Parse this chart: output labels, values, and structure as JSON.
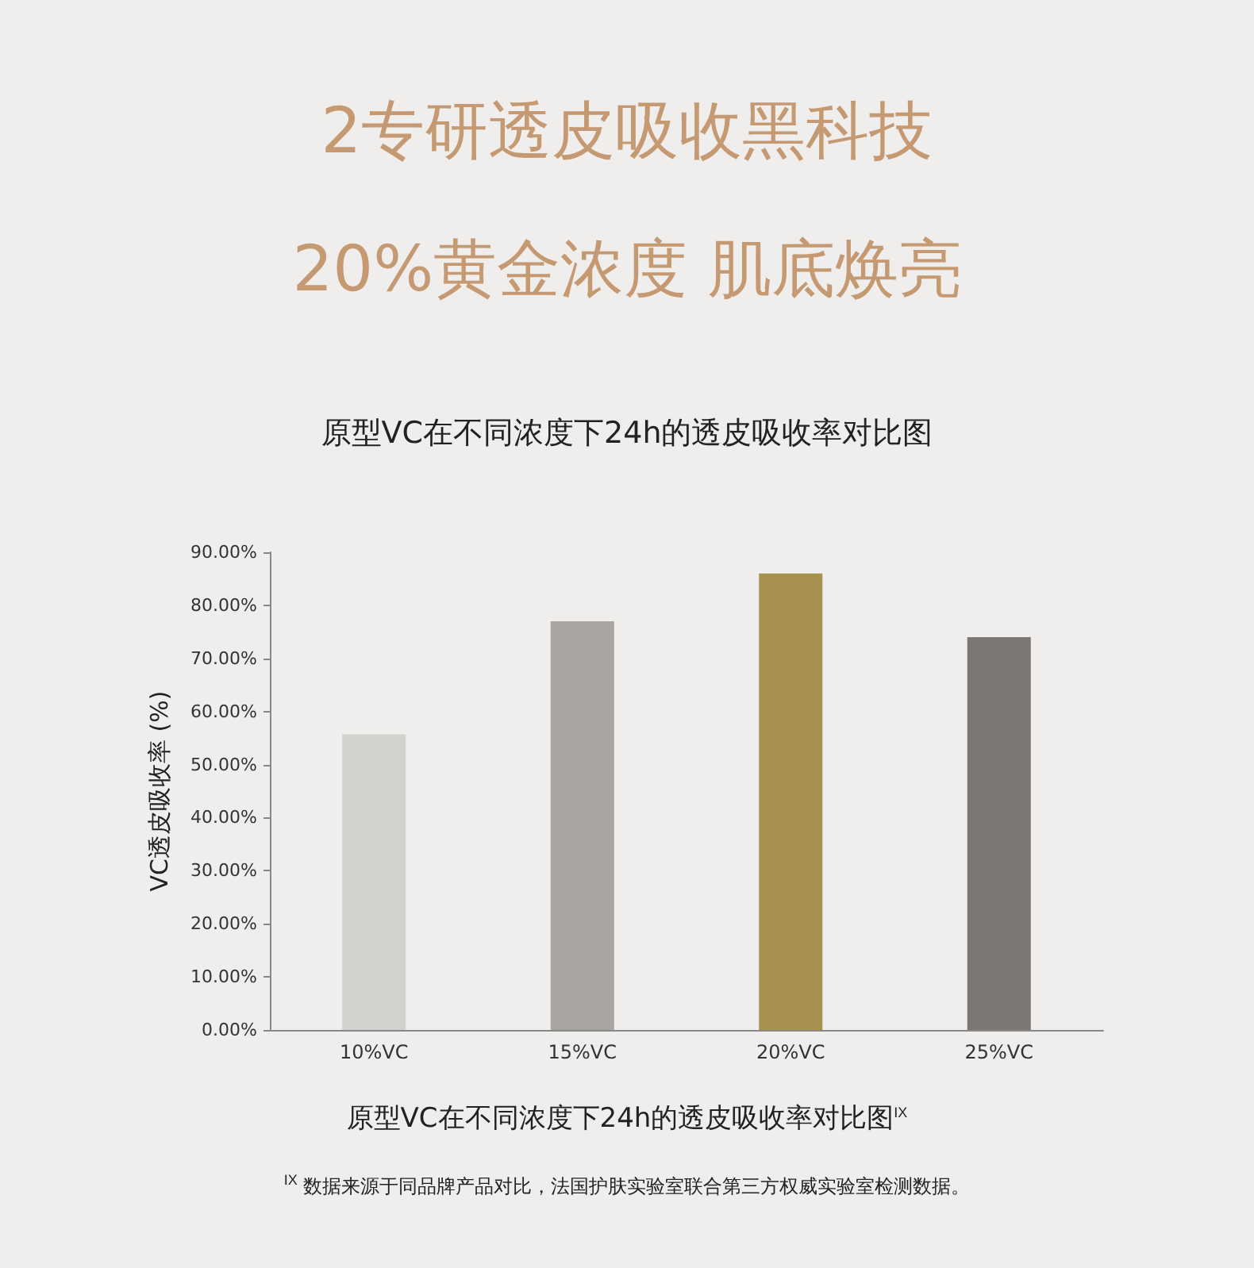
{
  "chart_data": {
    "type": "bar",
    "title": "2专研透皮吸收黑科技",
    "subtitle": "20%黄金浓度 肌底焕亮",
    "ylabel": "VC透皮吸收率 (%)",
    "categories": [
      "10%VC",
      "15%VC",
      "20%VC",
      "25%VC"
    ],
    "values": [
      55.7,
      77,
      86,
      74
    ],
    "colors": [
      "#d3d1ce",
      "#a8a49f",
      "#a8914f",
      "#7c7772"
    ],
    "ylim": [
      0,
      90
    ],
    "yticks": [
      {
        "value": 0,
        "label": "0.00%"
      },
      {
        "value": 10,
        "label": "10.00%"
      },
      {
        "value": 20,
        "label": "20.00%"
      },
      {
        "value": 30,
        "label": "30.00%"
      },
      {
        "value": 40,
        "label": "40.00%"
      },
      {
        "value": 50,
        "label": "50.00%"
      },
      {
        "value": 60,
        "label": "60.00%"
      },
      {
        "value": 70,
        "label": "70.00%"
      },
      {
        "value": 80,
        "label": "80.00%"
      },
      {
        "value": 90,
        "label": "90.00%"
      }
    ],
    "grid": false,
    "annotations": [
      "原型VC在不同浓度下24h的透皮吸收率对比图",
      "原型VC在不同浓度下24h的透皮吸收率对比图$^{IX}$",
      "$^{IX}$ 数据来源于同品牌产品对比，法国护肤实验室联合第三方权威实验室检测数据。"
    ]
  }
}
